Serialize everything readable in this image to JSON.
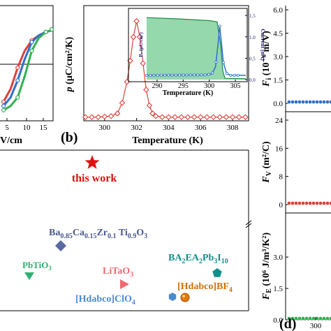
{
  "panel_labels": {
    "b": "(b)",
    "d": "(d)"
  },
  "colors": {
    "red": "#e0403a",
    "blue": "#2f6fd0",
    "green": "#30b050",
    "navy": "#1a1a7a",
    "green_fill": "#3cb868"
  },
  "chart_data": [
    {
      "id": "a-partial",
      "type": "line",
      "description_visible": "hysteresis loops (cropped)",
      "x_ticks": [
        "5",
        "10",
        "15"
      ],
      "xlabel": "V/cm",
      "series": [
        {
          "color": "#e0403a",
          "x": [
            -2,
            0,
            2,
            4,
            6,
            8,
            10,
            12,
            14
          ],
          "y": [
            0.1,
            0.25,
            0.5,
            0.7,
            0.82,
            0.88,
            0.92,
            0.94,
            0.95
          ]
        },
        {
          "color": "#2f6fd0",
          "x": [
            -2,
            0,
            2,
            4,
            6,
            8,
            10,
            12,
            14
          ],
          "y": [
            0.05,
            0.15,
            0.35,
            0.6,
            0.8,
            0.88,
            0.92,
            0.94,
            0.95
          ]
        },
        {
          "color": "#30b050",
          "x": [
            -2,
            0,
            2,
            4,
            6,
            8,
            10,
            12,
            14
          ],
          "y": [
            0.0,
            0.05,
            0.15,
            0.4,
            0.7,
            0.85,
            0.92,
            0.94,
            0.95
          ]
        }
      ],
      "xlim": [
        -3,
        16
      ],
      "ylim": [
        -0.1,
        1.05
      ]
    },
    {
      "id": "b",
      "type": "line",
      "title": "",
      "xlabel": "Temperature (K)",
      "ylabel": "p (μC/cm²/K)",
      "x_ticks": [
        "300",
        "302",
        "304",
        "306",
        "308"
      ],
      "xlim": [
        298.7,
        309
      ],
      "ylim": [
        0,
        1.92
      ],
      "series": [
        {
          "name": "p",
          "color": "#e0403a",
          "x": [
            298.8,
            299.2,
            299.6,
            300.0,
            300.4,
            300.8,
            301.1,
            301.4,
            301.6,
            301.8,
            302.0,
            302.2,
            302.4,
            302.6,
            302.8,
            303.0,
            303.2,
            303.6,
            304.0,
            304.4,
            304.8,
            305.2,
            305.6,
            306.0,
            306.4,
            306.8,
            307.2,
            307.6,
            308.0,
            308.4,
            308.8
          ],
          "y": [
            0.03,
            0.03,
            0.03,
            0.04,
            0.05,
            0.1,
            0.3,
            0.7,
            1.1,
            1.55,
            1.85,
            1.55,
            1.05,
            0.55,
            0.25,
            0.1,
            0.05,
            0.03,
            0.03,
            0.03,
            0.03,
            0.03,
            0.03,
            0.03,
            0.03,
            0.03,
            0.03,
            0.03,
            0.03,
            0.03,
            0.03
          ]
        }
      ],
      "inset": {
        "xlabel": "Temperature (K)",
        "ylabel_left": "Pₛ (μC/cm²)",
        "ylabel_right": "Current (nA)",
        "x_ticks": [
          "290",
          "295",
          "300",
          "305"
        ],
        "y_right_ticks": [
          "0.0",
          "0.5",
          "1.0",
          "1.5"
        ],
        "xlim": [
          288,
          307
        ],
        "ylim_right": [
          0,
          1.6
        ],
        "ps_curve": {
          "x": [
            288,
            294,
            300,
            301.5,
            302.2,
            302.6,
            303,
            307
          ],
          "y": [
            1.45,
            1.42,
            1.38,
            1.35,
            0.8,
            0.2,
            0.03,
            0.02
          ]
        },
        "current": {
          "x": [
            288,
            299,
            300.5,
            301.2,
            301.7,
            302.0,
            302.3,
            302.7,
            303.3,
            304,
            307
          ],
          "y": [
            0.1,
            0.11,
            0.13,
            0.3,
            0.85,
            1.25,
            0.9,
            0.4,
            0.15,
            0.1,
            0.1
          ]
        }
      }
    },
    {
      "id": "c",
      "type": "scatter",
      "points": [
        {
          "label": "this work",
          "marker": "star",
          "color": "#e01010"
        },
        {
          "label": "Ba0.85Ca0.15Zr0.1Ti0.9O3",
          "marker": "diamond",
          "color": "#5a6aa0"
        },
        {
          "label": "PbTiO3",
          "marker": "triangle-down",
          "color": "#2fb070"
        },
        {
          "label": "LiTaO3",
          "marker": "triangle-right",
          "color": "#f06a70"
        },
        {
          "label": "[Hdabco]ClO4",
          "marker": "hexagon",
          "color": "#4a8ad0"
        },
        {
          "label": "BA2EA2Pb3I10",
          "marker": "pentagon",
          "color": "#10908a"
        },
        {
          "label": "[Hdabco]BF4",
          "marker": "circle",
          "color": "#e07a10"
        }
      ]
    },
    {
      "id": "d",
      "type": "line",
      "subplots": [
        {
          "ylabel": "Fi (10⁻⁹ m/V)",
          "y_ticks": [
            "0.0",
            "1.5",
            "3.0",
            "4.5",
            "6.0"
          ],
          "ylim": [
            0,
            6.0
          ],
          "color": "#2f6fd0",
          "baseline": 0.0
        },
        {
          "ylabel": "FV (m²/C)",
          "y_ticks": [
            "0",
            "8",
            "16",
            "24"
          ],
          "ylim": [
            0,
            24
          ],
          "color": "#e0403a",
          "baseline": 0.0
        },
        {
          "ylabel": "FE (10⁶ J/m³/K²)",
          "y_ticks": [
            "0.0",
            "1.5",
            "3.0"
          ],
          "ylim": [
            0,
            3.0
          ],
          "color": "#30b050",
          "baseline": 0.0
        }
      ],
      "x_ticks": [
        "300"
      ]
    }
  ],
  "texts": {
    "a_xlabel": "V/cm",
    "b_ylabel_p": "p",
    "b_ylabel_unit": " (μC/cm²/K)",
    "b_xlabel": "Temperature (K)",
    "inset_xlabel": "Temperature (K)",
    "inset_ylabel_left": "Pₛ (μC/cm²)",
    "inset_ylabel_right": "Current (nA)",
    "c_this_work": "this work",
    "c_bczt_main": "Ba",
    "c_bczt_s1": "0.85",
    "c_bczt_ca": "Ca",
    "c_bczt_s2": "0.15",
    "c_bczt_zr": "Zr",
    "c_bczt_s3": "0.1",
    "c_bczt_ti": " Ti",
    "c_bczt_s4": "0.9",
    "c_bczt_o": "O",
    "c_bczt_s5": "3",
    "c_pbtio": "PbTiO",
    "c_pbtio_s": "3",
    "c_litao": "LiTaO",
    "c_litao_s": "3",
    "c_clo4": "[Hdabco]ClO",
    "c_clo4_s": "4",
    "c_ba2": "BA",
    "c_ba2_s1": "2",
    "c_ba2_ea": "EA",
    "c_ba2_s2": "2",
    "c_ba2_pb": "Pb",
    "c_ba2_s3": "3",
    "c_ba2_i": "I",
    "c_ba2_s4": "10",
    "c_bf4": "[Hdabco]BF",
    "c_bf4_s": "4",
    "d_fi": "F",
    "d_fi_sub": "i",
    "d_fi_unit": " (10⁻⁹ m/V)",
    "d_fv": "F",
    "d_fv_sub": "V",
    "d_fv_unit": " (m²/C)",
    "d_fe": "F",
    "d_fe_sub": "E",
    "d_fe_unit": " (10⁶ J/m³/K²)"
  }
}
